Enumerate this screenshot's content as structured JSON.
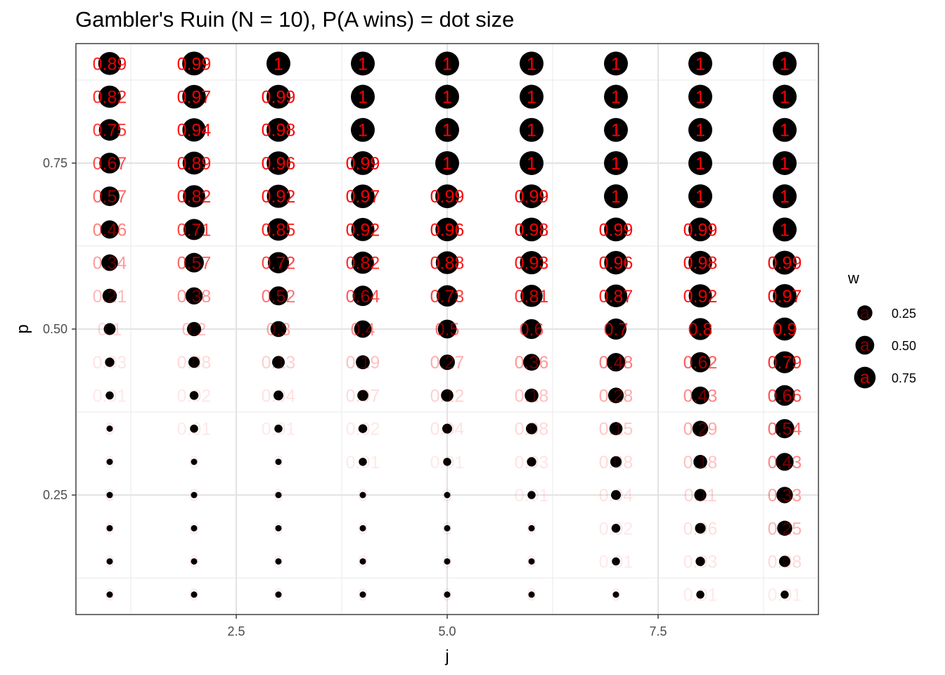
{
  "chart_data": {
    "type": "scatter",
    "title": "Gambler's Ruin (N = 10), P(A wins) = dot size",
    "xlabel": "j",
    "ylabel": "p",
    "xlim": [
      0.6,
      9.4
    ],
    "ylim": [
      0.07,
      0.93
    ],
    "x_ticks": [
      2.5,
      5.0,
      7.5
    ],
    "x_tick_labels": [
      "2.5",
      "5.0",
      "7.5"
    ],
    "y_ticks": [
      0.25,
      0.5,
      0.75
    ],
    "y_tick_labels": [
      "0.25",
      "0.50",
      "0.75"
    ],
    "grid": true,
    "legend_position": "right",
    "size_legend": {
      "title": "w",
      "glyph": "a",
      "entries": [
        {
          "value": 0.25,
          "label": "0.25"
        },
        {
          "value": 0.5,
          "label": "0.50"
        },
        {
          "value": 0.75,
          "label": "0.75"
        }
      ]
    },
    "label_color": "#ff0000",
    "point_color": "#000000",
    "p_values": [
      0.1,
      0.15,
      0.2,
      0.25,
      0.3,
      0.35,
      0.4,
      0.45,
      0.5,
      0.55,
      0.6,
      0.65,
      0.7,
      0.75,
      0.8,
      0.85,
      0.9
    ],
    "j_values": [
      1,
      2,
      3,
      4,
      5,
      6,
      7,
      8,
      9
    ],
    "w_by_p": [
      [
        0,
        0,
        0,
        0,
        0,
        0,
        0,
        0.01,
        0.01
      ],
      [
        0,
        0,
        0,
        0,
        0,
        0,
        0.01,
        0.03,
        0.08
      ],
      [
        0,
        0,
        0,
        0,
        0,
        0,
        0.02,
        0.06,
        0.25
      ],
      [
        0,
        0,
        0,
        0,
        0,
        0.01,
        0.04,
        0.11,
        0.33
      ],
      [
        0,
        0,
        0,
        0.01,
        0.01,
        0.03,
        0.08,
        0.18,
        0.43
      ],
      [
        0,
        0.01,
        0.01,
        0.02,
        0.04,
        0.08,
        0.15,
        0.29,
        0.54
      ],
      [
        0.01,
        0.02,
        0.04,
        0.07,
        0.12,
        0.18,
        0.28,
        0.43,
        0.66
      ],
      [
        0.03,
        0.08,
        0.13,
        0.19,
        0.27,
        0.36,
        0.48,
        0.62,
        0.79
      ],
      [
        0.1,
        0.2,
        0.3,
        0.4,
        0.5,
        0.6,
        0.7,
        0.8,
        0.9
      ],
      [
        0.21,
        0.38,
        0.52,
        0.64,
        0.73,
        0.81,
        0.87,
        0.92,
        0.97
      ],
      [
        0.34,
        0.57,
        0.72,
        0.82,
        0.88,
        0.93,
        0.96,
        0.98,
        0.99
      ],
      [
        0.46,
        0.71,
        0.85,
        0.92,
        0.96,
        0.98,
        0.99,
        0.99,
        1
      ],
      [
        0.57,
        0.82,
        0.92,
        0.97,
        0.99,
        0.99,
        1,
        1,
        1
      ],
      [
        0.67,
        0.89,
        0.96,
        0.99,
        1,
        1,
        1,
        1,
        1
      ],
      [
        0.75,
        0.94,
        0.98,
        1,
        1,
        1,
        1,
        1,
        1
      ],
      [
        0.82,
        0.97,
        0.99,
        1,
        1,
        1,
        1,
        1,
        1
      ],
      [
        0.89,
        0.99,
        1,
        1,
        1,
        1,
        1,
        1,
        1
      ]
    ]
  }
}
